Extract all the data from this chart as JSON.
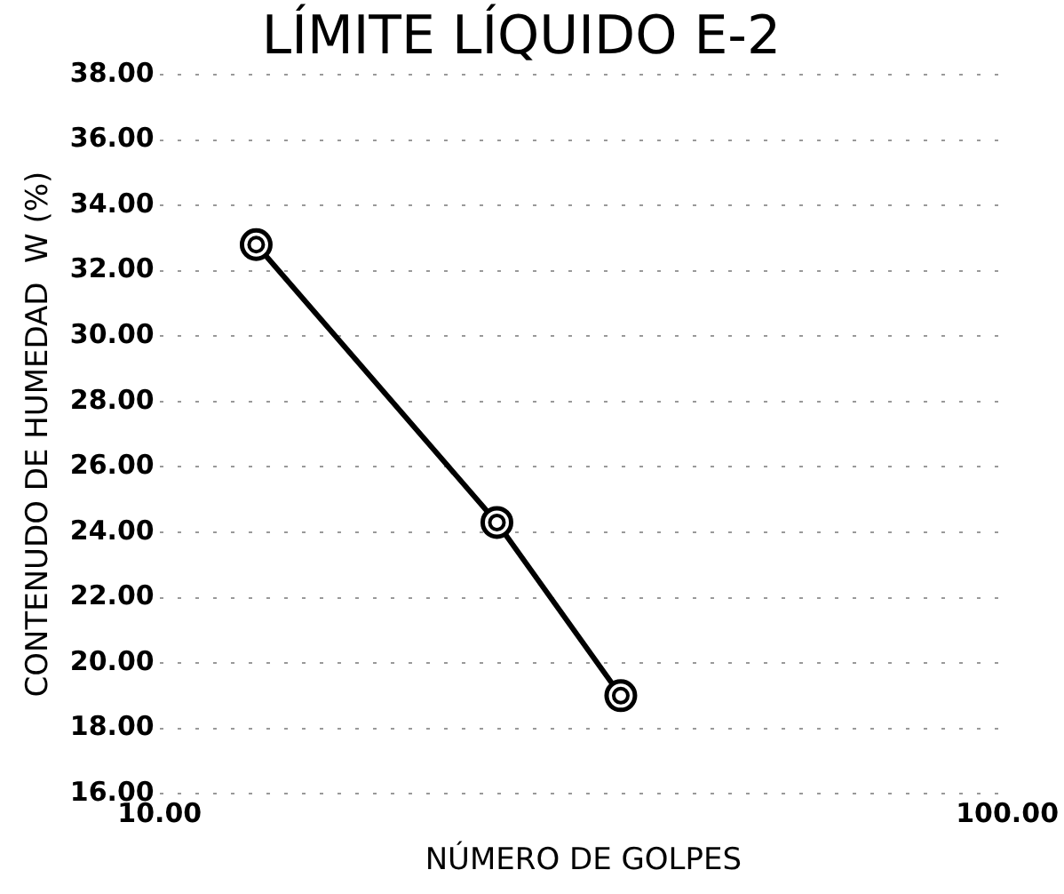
{
  "chart_data": {
    "type": "line",
    "title": "LÍMITE LÍQUIDO E-2",
    "xlabel": "NÚMERO DE GOLPES",
    "ylabel": "CONTENUDO DE HUMEDAD  W (%)",
    "x": [
      13,
      25,
      35
    ],
    "series": [
      {
        "color": "#000000",
        "values": [
          32.8,
          24.3,
          19.0
        ]
      }
    ],
    "log": "x",
    "xlim": [
      10,
      100
    ],
    "xticks": [
      {
        "value": 10,
        "label": "10.00"
      },
      {
        "value": 100,
        "label": "100.00"
      }
    ],
    "ylim": [
      16,
      38
    ],
    "yticks": [
      {
        "value": 16,
        "label": "16.00"
      },
      {
        "value": 18,
        "label": "18.00"
      },
      {
        "value": 20,
        "label": "20.00"
      },
      {
        "value": 22,
        "label": "22.00"
      },
      {
        "value": 24,
        "label": "24.00"
      },
      {
        "value": 26,
        "label": "26.00"
      },
      {
        "value": 28,
        "label": "28.00"
      },
      {
        "value": 30,
        "label": "30.00"
      },
      {
        "value": 32,
        "label": "32.00"
      },
      {
        "value": 34,
        "label": "34.00"
      },
      {
        "value": 36,
        "label": "36.00"
      },
      {
        "value": 38,
        "label": "38.00"
      }
    ],
    "grid": "y",
    "marker": "circle",
    "line_style": "solid"
  }
}
